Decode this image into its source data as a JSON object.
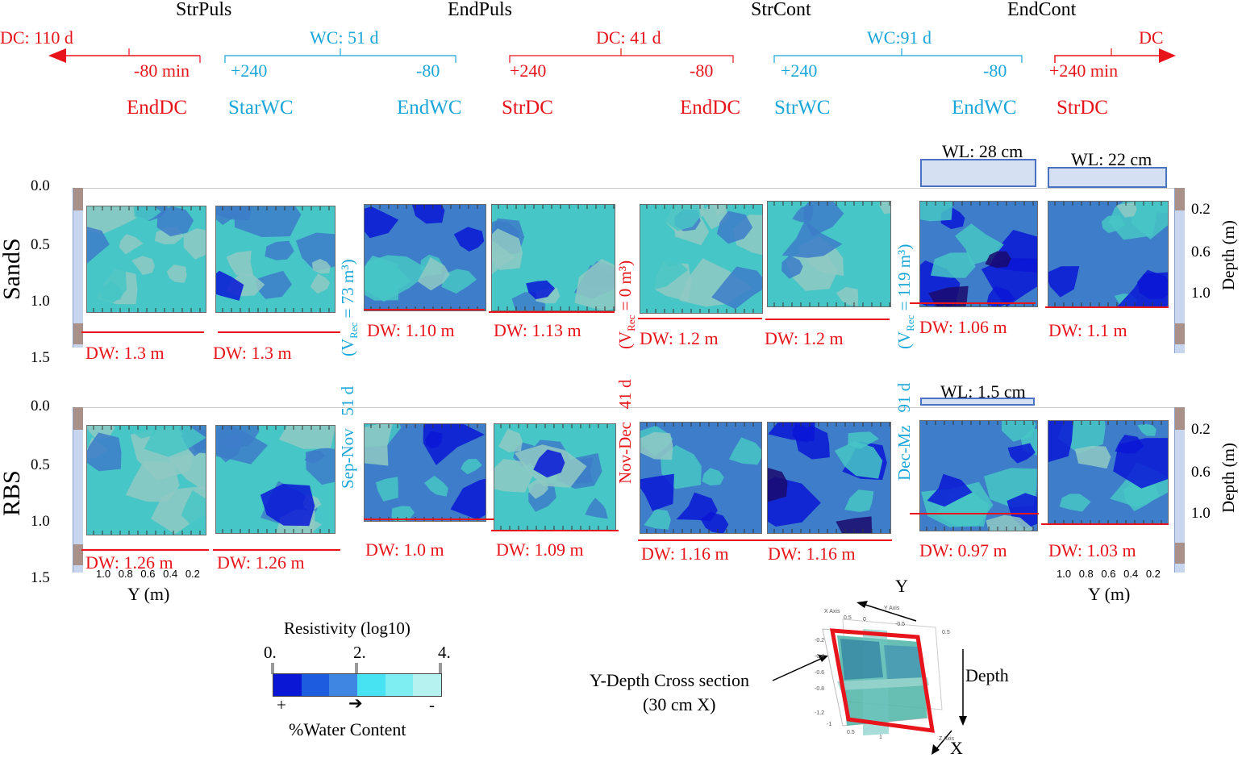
{
  "timeline": {
    "phases": [
      "StrPuls",
      "EndPuls",
      "StrCont",
      "EndCont"
    ],
    "durations": [
      {
        "label": "DC: 110 d",
        "color": "#e8141b"
      },
      {
        "label": "WC: 51 d",
        "color": "#1aa6d9"
      },
      {
        "label": "DC: 41 d",
        "color": "#e8141b"
      },
      {
        "label": "WC:91 d",
        "color": "#1aa6d9"
      },
      {
        "label": "DC",
        "color": "#e8141b"
      }
    ],
    "offsets": [
      "-80 min",
      "+240",
      "-80",
      "+240",
      "-80",
      "+240",
      "-80",
      "+240 min"
    ],
    "events": [
      "EndDC",
      "StarWC",
      "EndWC",
      "StrDC",
      "EndDC",
      "StrWC",
      "EndWC",
      "StrDC"
    ]
  },
  "rows": [
    {
      "name": "SandS",
      "dw": [
        "DW: 1.3 m",
        "DW: 1.3 m",
        "DW: 1.10 m",
        "DW: 1.13 m",
        "DW: 1.2 m",
        "DW: 1.2 m",
        "DW: 1.06 m",
        "DW: 1.1 m"
      ],
      "wl": [
        "WL: 28 cm",
        "WL: 22 cm"
      ]
    },
    {
      "name": "RBS",
      "dw": [
        "DW: 1.26 m",
        "DW: 1.26 m",
        "DW: 1.0 m",
        "DW: 1.09 m",
        "DW: 1.16 m",
        "DW: 1.16 m",
        "DW: 0.97 m",
        "DW: 1.03 m"
      ],
      "wl": [
        "WL: 1.5 cm"
      ]
    }
  ],
  "separators": [
    {
      "season": "Sep-Nov",
      "days": "51 d",
      "vrec": "(V",
      "sub": "Rec",
      "vval": " = 73 m³)",
      "color": "#1aa6d9"
    },
    {
      "season": "Nov-Dec",
      "days": "41 d",
      "vrec": "(V",
      "sub": "Rec",
      "vval": " = 0 m³)",
      "color": "#e8141b"
    },
    {
      "season": "Dec-Mz",
      "days": "91 d",
      "vrec": "(V",
      "sub": "Rec",
      "vval": " = 119 m³)",
      "color": "#1aa6d9"
    }
  ],
  "axes": {
    "left_ticks": [
      "0.0",
      "0.5",
      "1.0",
      "1.5"
    ],
    "right_ticks": [
      "0.2",
      "0.6",
      "1.0"
    ],
    "right_label": "Depth (m)",
    "y_ticks": [
      "1.0",
      "0.8",
      "0.6",
      "0.4",
      "0.2"
    ],
    "y_label": "Y (m)"
  },
  "legend": {
    "title": "Resistivity (log10)",
    "ticks": [
      "0.",
      "2.",
      "4."
    ],
    "colors": [
      "#0a18d6",
      "#1e5cdf",
      "#3f85e2",
      "#47e3f2",
      "#7feef2",
      "#b5f2f0"
    ],
    "plus": "+",
    "arrow": "➔",
    "minus": "-",
    "caption": "%Water Content"
  },
  "inset": {
    "y_label": "Y",
    "x_label": "X",
    "depth_label": "Depth",
    "callout": [
      "Y-Depth Cross section",
      "(30 cm X)"
    ],
    "axis_labels": [
      "X Axis",
      "Y Axis",
      "Z Axis"
    ],
    "tick_labels": [
      "0.5",
      "0",
      "-0.5",
      "-1",
      "0.5",
      "1",
      "0.5",
      "-0.2",
      "-0.4",
      "-0.6",
      "-0.8",
      "-1.2"
    ]
  },
  "colors": {
    "red": "#e8141b",
    "cyan": "#1aa6d9",
    "dark": "#1a0a6e",
    "deep": "#0a18d6",
    "mid": "#3d7dc9",
    "teal": "#46c6c6",
    "pale": "#8fc9c3"
  }
}
